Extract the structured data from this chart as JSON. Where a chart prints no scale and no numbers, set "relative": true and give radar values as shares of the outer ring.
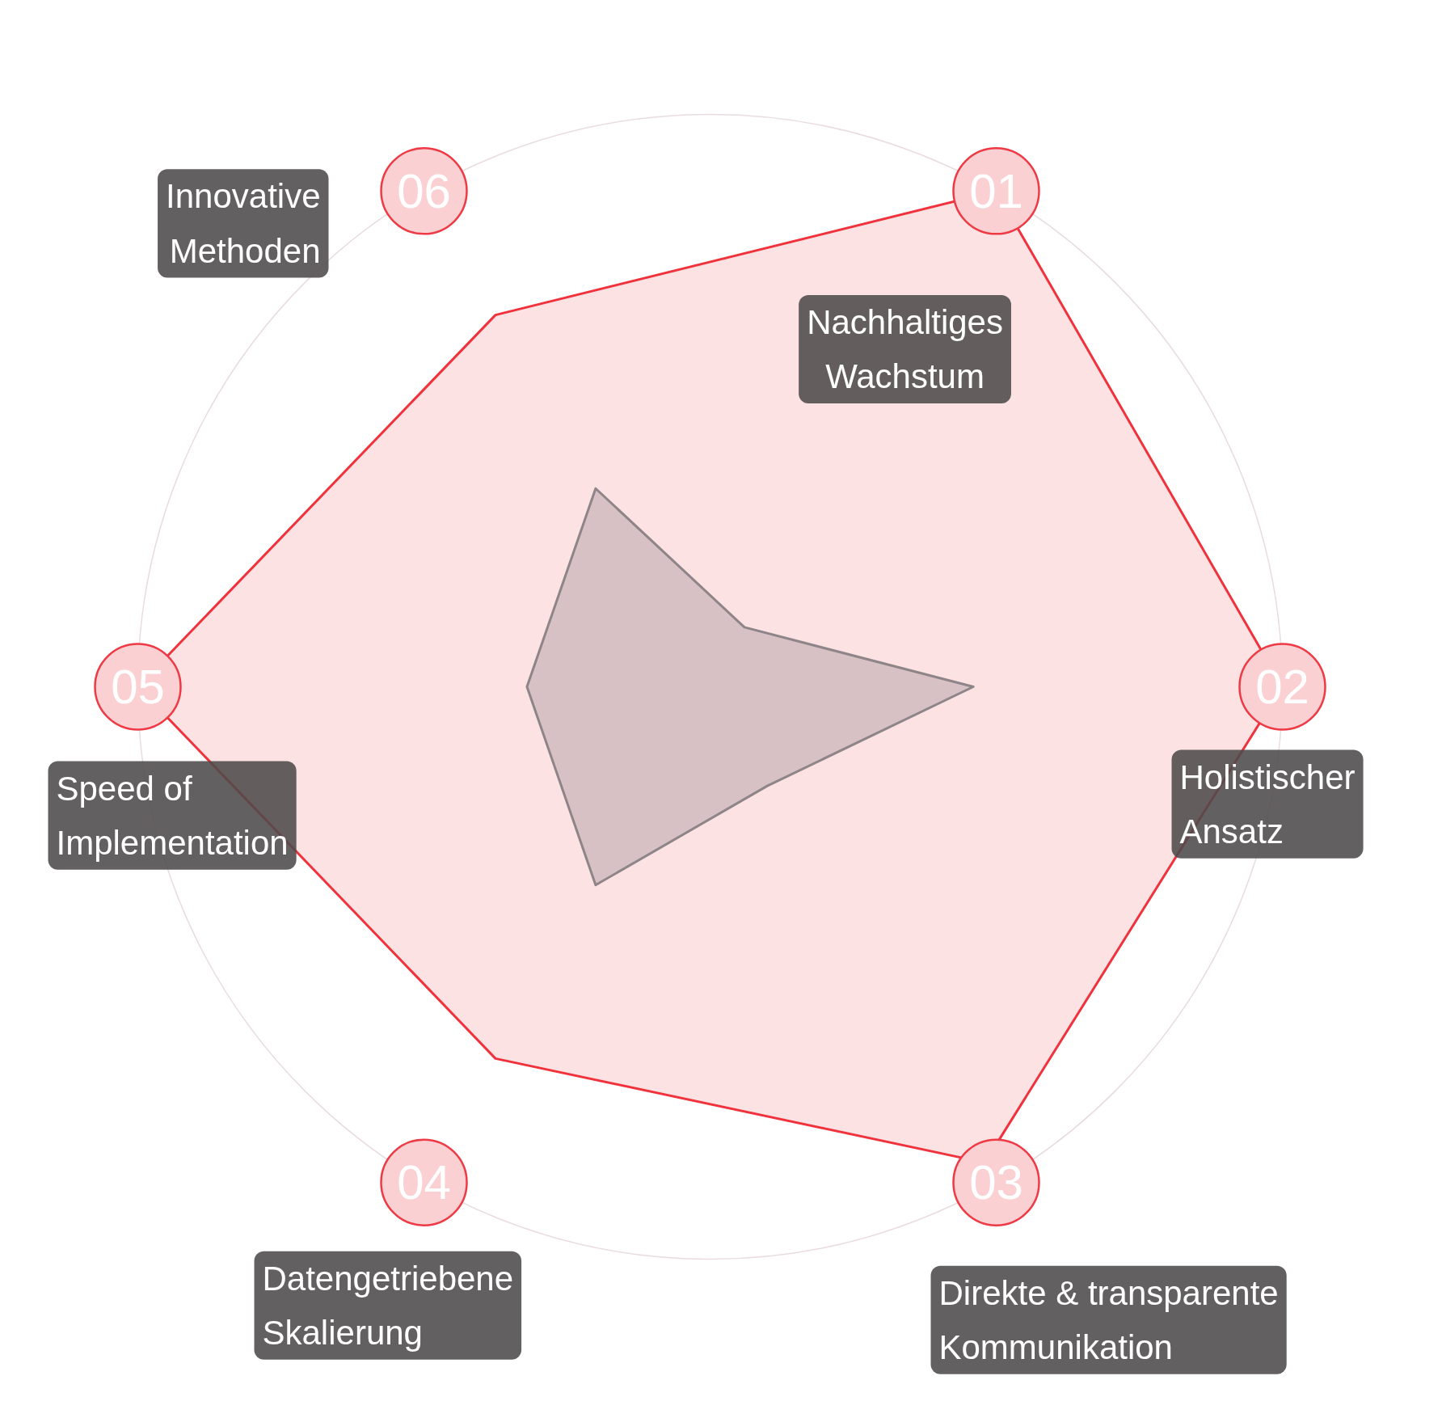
{
  "chart_data": {
    "type": "radar",
    "relative": true,
    "grid": true,
    "categories": [
      "Nachhaltiges Wachstum",
      "Holistischer Ansatz",
      "Direkte & transparente Kommunikation",
      "Datengetriebene Skalierung",
      "Speed of Implementation",
      "Innovative Methoden"
    ],
    "series": [
      {
        "color": "#f0323c",
        "values": [
          1.0,
          1.0,
          0.96,
          0.75,
          1.0,
          0.75
        ]
      },
      {
        "color": "#8e8589",
        "values": [
          0.12,
          0.46,
          0.2,
          0.4,
          0.32,
          0.4
        ]
      }
    ],
    "annotations": [
      "01",
      "02",
      "03",
      "04",
      "05",
      "06"
    ]
  }
}
